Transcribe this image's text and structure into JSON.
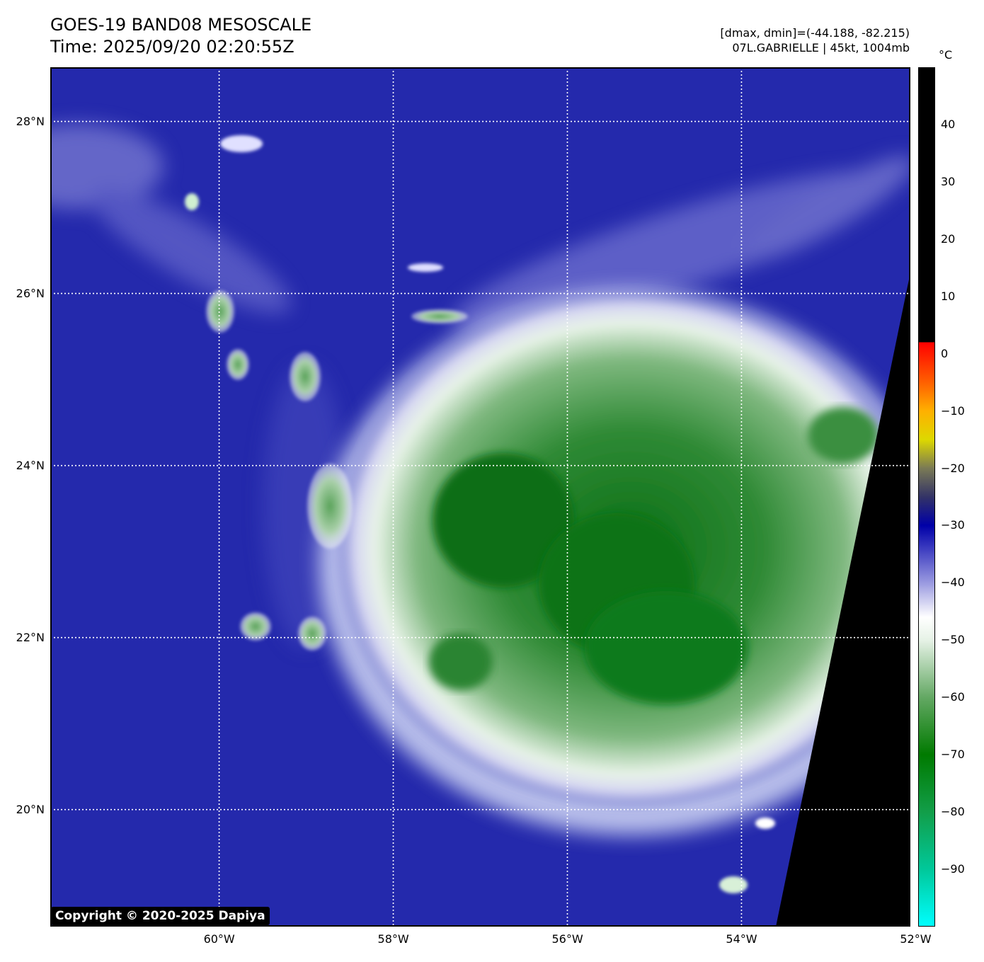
{
  "title": {
    "line1": "GOES-19 BAND08 MESOSCALE",
    "line2": "Time: 2025/09/20 02:20:55Z"
  },
  "info": {
    "range": "[dmax, dmin]=(-44.188, -82.215)",
    "storm": "07L.GABRIELLE | 45kt, 1004mb"
  },
  "map": {
    "lon_range": [
      -61.94,
      -52.06
    ],
    "lat_range": [
      18.64,
      28.63
    ],
    "lat_labels": [
      {
        "value": 28,
        "label": "28°N"
      },
      {
        "value": 26,
        "label": "26°N"
      },
      {
        "value": 24,
        "label": "24°N"
      },
      {
        "value": 22,
        "label": "22°N"
      },
      {
        "value": 20,
        "label": "20°N"
      }
    ],
    "lon_labels": [
      {
        "value": -60,
        "label": "60°W"
      },
      {
        "value": -58,
        "label": "58°W"
      },
      {
        "value": -56,
        "label": "56°W"
      },
      {
        "value": -54,
        "label": "54°W"
      },
      {
        "value": -52,
        "label": "52°W"
      }
    ],
    "colors": {
      "background": "#2a2fb2",
      "cold_cloud": "#1f8a2e",
      "cold_core": "#0a6e14",
      "no_data": "#000000",
      "gridline": "#ffffff"
    }
  },
  "copyright": "Copyright © 2020-2025 Dapiya",
  "colorbar": {
    "unit": "°C",
    "range": [
      -100,
      50
    ],
    "ticks": [
      {
        "value": 40,
        "label": "40"
      },
      {
        "value": 30,
        "label": "30"
      },
      {
        "value": 20,
        "label": "20"
      },
      {
        "value": 10,
        "label": "10"
      },
      {
        "value": 0,
        "label": "0"
      },
      {
        "value": -10,
        "label": "−10"
      },
      {
        "value": -20,
        "label": "−20"
      },
      {
        "value": -30,
        "label": "−30"
      },
      {
        "value": -40,
        "label": "−40"
      },
      {
        "value": -50,
        "label": "−50"
      },
      {
        "value": -60,
        "label": "−60"
      },
      {
        "value": -70,
        "label": "−70"
      },
      {
        "value": -80,
        "label": "−80"
      },
      {
        "value": -90,
        "label": "−90"
      }
    ],
    "stops": [
      {
        "value": -100,
        "color": "#00ffff"
      },
      {
        "value": -90,
        "color": "#00c89a"
      },
      {
        "value": -80,
        "color": "#129e49"
      },
      {
        "value": -70,
        "color": "#007a00"
      },
      {
        "value": -60,
        "color": "#63a863"
      },
      {
        "value": -50,
        "color": "#e6f2e6"
      },
      {
        "value": -46,
        "color": "#ffffff"
      },
      {
        "value": -40,
        "color": "#9a9ae0"
      },
      {
        "value": -34,
        "color": "#3c3cc0"
      },
      {
        "value": -30,
        "color": "#0000a8"
      },
      {
        "value": -25,
        "color": "#333366"
      },
      {
        "value": -20,
        "color": "#7a7a55"
      },
      {
        "value": -15,
        "color": "#ddd800"
      },
      {
        "value": -10,
        "color": "#ffb000"
      },
      {
        "value": -5,
        "color": "#ff6000"
      },
      {
        "value": 2,
        "color": "#ff0000"
      },
      {
        "value": 2.01,
        "color": "#000000"
      },
      {
        "value": 50,
        "color": "#000000"
      }
    ]
  }
}
